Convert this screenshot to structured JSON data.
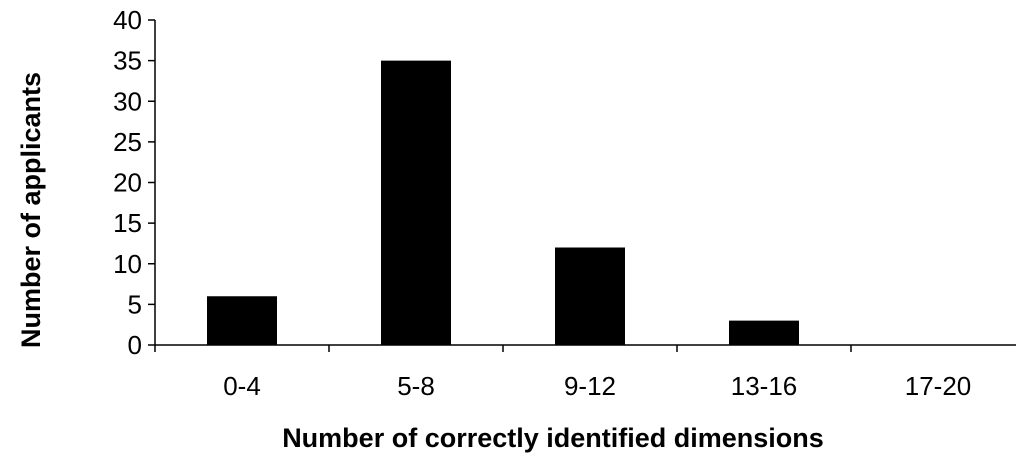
{
  "chart_data": {
    "type": "bar",
    "title": "",
    "xlabel": "Number of correctly identified dimensions",
    "ylabel": "Number of applicants",
    "categories": [
      "0-4",
      "5-8",
      "9-12",
      "13-16",
      "17-20"
    ],
    "values": [
      6,
      35,
      12,
      3,
      0
    ],
    "ylim": [
      0,
      40
    ],
    "yticks": [
      "0",
      "5",
      "10",
      "15",
      "20",
      "25",
      "30",
      "35",
      "40"
    ],
    "bar_color": "#000000",
    "grid": false,
    "legend": "none"
  }
}
